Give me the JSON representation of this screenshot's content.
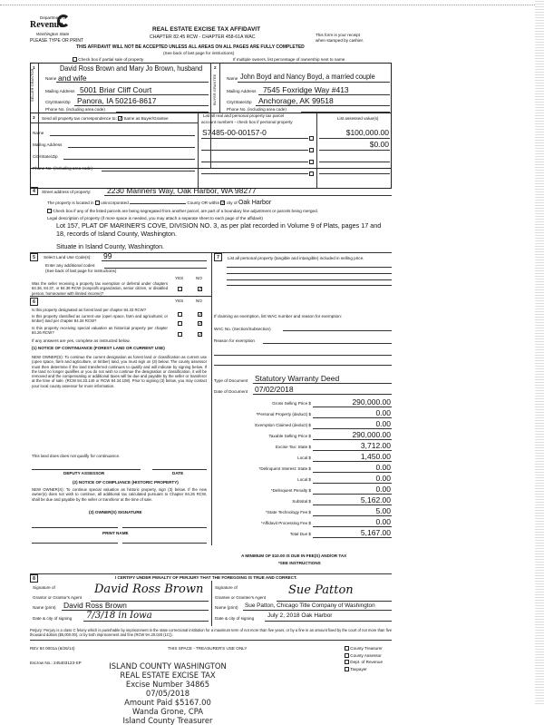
{
  "header": {
    "dept": "Department of",
    "revenue": "Revenue",
    "state": "Washington State",
    "type_print": "PLEASE TYPE OR PRINT",
    "title": "REAL ESTATE EXCISE TAX AFFIDAVIT",
    "chapter": "CHAPTER 82.45 RCW - CHAPTER 458-61A WAC",
    "receipt1": "This form is your receipt",
    "receipt2": "when stamped by cashier.",
    "warning": "THIS AFFIDAVIT WILL NOT BE ACCEPTED UNLESS ALL AREAS ON ALL PAGES ARE FULLY COMPLETED",
    "see_back": "(See back of last page for instructions)",
    "partial": "Check box if partial sale of property",
    "multiple": "If multiple owners, list percentage of ownership next to name."
  },
  "seller": {
    "num": "1",
    "side": "SELLER GRANTOR",
    "name_label": "Name",
    "name1": "David Ross Brown and Mary Jo Brown, husband",
    "name2": "and wife",
    "mail_label": "Mailing Address",
    "mail": "5001 Briar Cliff Court",
    "city_label": "City/State/Zip",
    "city": "Panora, IA 50216-8617",
    "phone_label": "Phone No. (including area code)"
  },
  "buyer": {
    "num": "2",
    "side": "BUYER GRANTEE",
    "name_label": "Name",
    "name": "John Boyd and Nancy Boyd, a married couple",
    "mail_label": "Mailing Address",
    "mail": "7545 Foxridge Way #413",
    "city_label": "City/State/Zip",
    "city": "Anchorage, AK 99518",
    "phone_label": "Phone No. (including area code)"
  },
  "sec3": {
    "num": "3",
    "send": "Send all property tax correspondence to:",
    "same": "Same as Buyer/Grantee",
    "name": "Name",
    "mail": "Mailing Address",
    "city": "City/State/Zip",
    "phone": "Phone No. (including area code)",
    "parcel_head1": "List all real and personal property tax parcel",
    "parcel_head2": "account numbers - check box if personal property",
    "value_head": "List assessed value(s)",
    "parcels": [
      "S7485-00-00157-0",
      "",
      "",
      ""
    ],
    "values": [
      "$100,000.00",
      "$0.00",
      "",
      ""
    ]
  },
  "sec4": {
    "num": "4",
    "street_label": "Street address of property:",
    "street": "2230 Mariners Way, Oak Harbor, WA 98277",
    "located": "The property is located in",
    "unincorporated": "unincorporated",
    "county_or": "County OR within",
    "city_of": "city of",
    "city": "Oak Harbor",
    "segregated": "Check box if any of the listed parcels are being segregated from another parcel, are part of a boundary line adjustment or parcels being merged.",
    "legal_label": "Legal description of property (if more space is needed, you may attach a separate sheet to each page of the affidavit)",
    "legal1": "Lot 157, PLAT OF MARINER'S COVE, DIVISION NO. 3, as per plat recorded in Volume 9 of Plats, pages 17 and",
    "legal2": "18, records of Island County, Washington.",
    "situate": "Situate in Island County, Washington."
  },
  "sec5": {
    "num": "5",
    "land_use_label": "Select Land Use Code(s):",
    "land_use": "99",
    "additional": "Enter any additional codes:",
    "see_back": "(See back of last page for instructions)",
    "yes": "YES",
    "no": "NO",
    "q": "Was the seller receiving a property tax exemption or deferral under chapters 84.36, 84.37, or 84.38 RCW (nonprofit organization, senior citizen, or disabled person, homeowner with limited income)?"
  },
  "sec6": {
    "num": "6",
    "yes": "YES",
    "no": "NO",
    "q1": "Is this property designated as forest land per chapter 84.33 RCW?",
    "q2": "Is this property classified as current use (open space, farm and agricultural, or timber) land per chapter 84.34 RCW?",
    "q3": "Is this property receiving special valuation as historical property per chapter 84.26 RCW?",
    "if_yes": "If any answers are yes, complete as instructed below.",
    "notice1": "(1) NOTICE OF CONTINUANCE (FOREST LAND OR CURRENT USE)",
    "notice1_text": "NEW OWNER(S): To continue the current designation as forest land or classification as current use (open space, farm and agriculture, or timber) land, you must sign on (3) below. The county assessor must then determine if the land transferred continues to qualify and will indicate by signing below. If the land no longer qualifies or you do not wish to continue the designation or classification, it will be removed and the compensating or additional taxes will be due and payable by the seller or transferor at the time of sale. (RCW 84.33.140 or RCW 84.34.108). Prior to signing (3) below, you may contact your local county assessor for more information.",
    "qualify": "This land does does not qualify for continuance.",
    "deputy": "DEPUTY ASSESSOR",
    "date": "DATE",
    "notice2": "(2) NOTICE OF COMPLIANCE (HISTORIC PROPERTY)",
    "notice2_text": "NEW OWNER(S): To continue special valuation as historic property, sign (3) below. If the new owner(s) does not wish to continue, all additional tax calculated pursuant to Chapter 84.26 RCW, shall be due and payable by the seller or transferor at the time of sale.",
    "owner_sig": "(3) OWNER(S) SIGNATURE",
    "print_name": "PRINT NAME"
  },
  "sec7": {
    "num": "7",
    "label": "List all personal property (tangible and intangible) included in selling price.",
    "exemption": "If claiming an exemption, list WAC number and reason for exemption:",
    "wac": "WAC No. (Section/Subsection)",
    "reason": "Reason for exemption",
    "type_label": "Type of Document",
    "type": "Statutory Warranty Deed",
    "date_label": "Date of Document",
    "date": "07/02/2018"
  },
  "amounts": [
    {
      "label": "Gross Selling Price $",
      "value": "290,000.00"
    },
    {
      "label": "*Personal Property (deduct) $",
      "value": "0.00"
    },
    {
      "label": "Exemption Claimed (deduct) $",
      "value": "0.00"
    },
    {
      "label": "Taxable Selling Price $",
      "value": "290,000.00"
    },
    {
      "label": "Excise Tax: State $",
      "value": "3,712.00"
    },
    {
      "label": "Local $",
      "value": "1,450.00"
    },
    {
      "label": "*Delinquent Interest: State $",
      "value": "0.00"
    },
    {
      "label": "Local $",
      "value": "0.00"
    },
    {
      "label": "*Delinquent Penalty $",
      "value": "0.00"
    },
    {
      "label": "Subtotal $",
      "value": "5,162.00"
    },
    {
      "label": "*State Technology Fee $",
      "value": "5.00"
    },
    {
      "label": "*Affidavit Processing Fee $",
      "value": "0.00"
    },
    {
      "label": "Total Due $",
      "value": "5,167.00"
    }
  ],
  "minimum": "A MINIMUM OF $10.00 IS DUE IN FEE(S) AND/OR TAX",
  "see_instr": "*SEE INSTRUCTIONS",
  "sec8": {
    "num": "8",
    "certify": "I CERTIFY UNDER PENALTY OF PERJURY THAT THE FOREGOING IS TRUE AND CORRECT.",
    "sig_of": "Signature of",
    "grantor_agent": "Grantor or Grantor's Agent",
    "grantee_agent": "Grantee or Grantee's Agent",
    "name_print": "Name (print)",
    "grantor_name": "David Ross Brown",
    "grantee_name": "Sue Patton, Chicago Title Company of Washington",
    "date_city": "Date & city of signing",
    "grantor_date": "7/3/18 in Iowa",
    "grantee_date": "July 2, 2018 Oak Harbor",
    "grantor_signature": "David Ross Brown",
    "grantee_signature": "Sue Patton"
  },
  "perjury": "Perjury: Perjury is a class C felony which is punishable by imprisonment in the state correctional institution for a maximum term of not more than five years, or by a fine in an amount fixed by the court of not more than five thousand dollars ($5,000.00), or by both imprisonment and fine (RCW 9A.20.020 (1C)).",
  "footer": {
    "rev": "REV 84 0001a (6/26/14)",
    "treasurer_use": "THIS SPACE - TREASURER'S USE ONLY",
    "escrow": "Escrow No.: 245403123-SP",
    "copies": [
      "County Treasurer",
      "County Assessor",
      "Dept. of Revenue",
      "Taxpayer"
    ]
  },
  "stamp": [
    "ISLAND COUNTY WASHINGTON",
    "REAL ESTATE EXCISE TAX",
    "Excise Number 34865",
    "07/05/2018",
    "Amount Paid $5167.00",
    "Wanda Grone, CPA",
    "Island County Treasurer"
  ]
}
